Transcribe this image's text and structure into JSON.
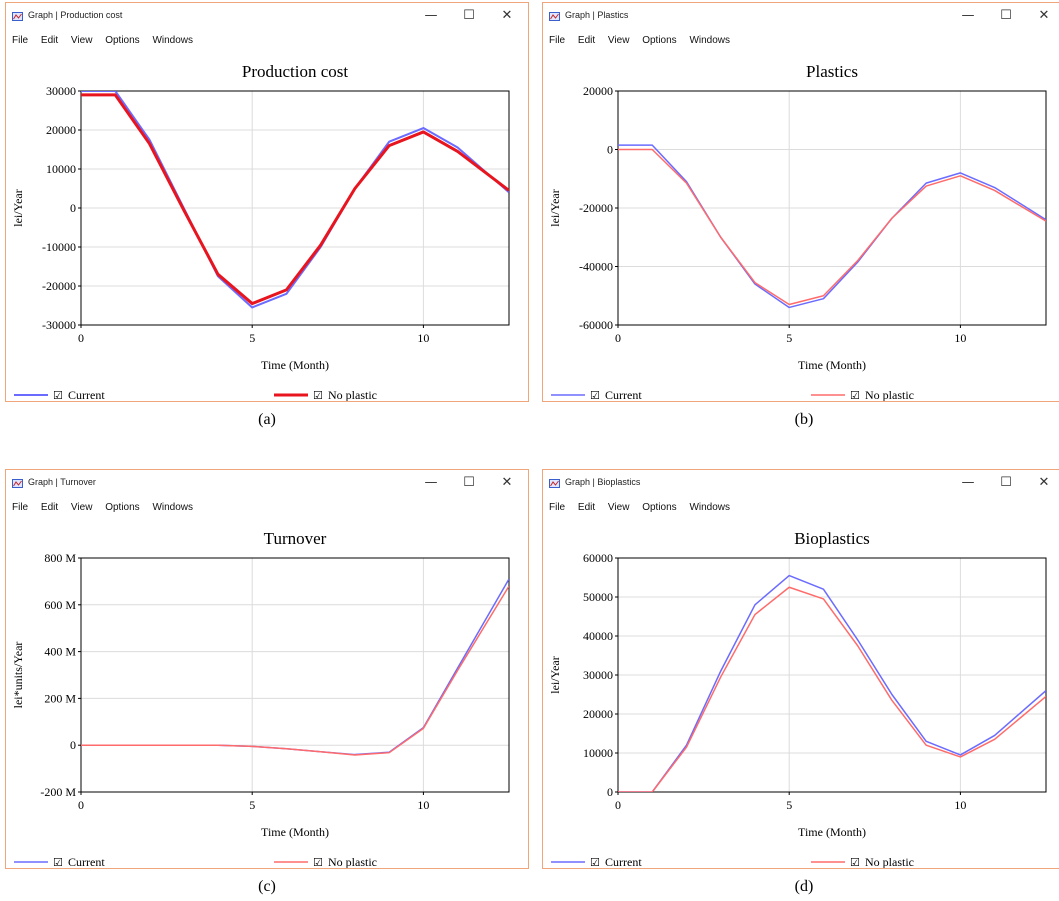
{
  "windows": [
    {
      "window_title": "Graph | Production cost",
      "menu": [
        "File",
        "Edit",
        "View",
        "Options",
        "Windows"
      ],
      "caption": "(a)",
      "chart_data": {
        "type": "line",
        "title": "Production cost",
        "xlabel": "Time (Month)",
        "ylabel": "lei/Year",
        "xlim": [
          0,
          12.5
        ],
        "ylim": [
          -30000,
          30000
        ],
        "xticks": [
          0,
          5,
          10
        ],
        "yticks": [
          -30000,
          -20000,
          -10000,
          0,
          10000,
          20000,
          30000
        ],
        "yticklabels": [
          "-30000",
          "-20000",
          "-10000",
          "0",
          "10000",
          "20000",
          "30000"
        ],
        "grid": true,
        "legend_placement": "bottom",
        "x": [
          0,
          1,
          2,
          3,
          4,
          5,
          6,
          7,
          8,
          9,
          10,
          11,
          12.5
        ],
        "series": [
          {
            "name": "Current",
            "color": "#6b6bff",
            "width": 2,
            "checkbox": "☑",
            "values": [
              30000,
              30000,
              17500,
              0,
              -17500,
              -25500,
              -22000,
              -10000,
              5000,
              17000,
              20500,
              15500,
              4000
            ]
          },
          {
            "name": "No plastic",
            "color": "#e8141e",
            "width": 3,
            "checkbox": "☑",
            "values": [
              29000,
              29000,
              16500,
              -500,
              -17000,
              -24500,
              -21000,
              -9500,
              5000,
              16000,
              19500,
              14500,
              4500
            ]
          }
        ]
      }
    },
    {
      "window_title": "Graph | Plastics",
      "menu": [
        "File",
        "Edit",
        "View",
        "Options",
        "Windows"
      ],
      "caption": "(b)",
      "chart_data": {
        "type": "line",
        "title": "Plastics",
        "xlabel": "Time (Month)",
        "ylabel": "lei/Year",
        "xlim": [
          0,
          12.5
        ],
        "ylim": [
          -60000,
          20000
        ],
        "xticks": [
          0,
          5,
          10
        ],
        "yticks": [
          -60000,
          -40000,
          -20000,
          0,
          20000
        ],
        "yticklabels": [
          "-60000",
          "-40000",
          "-20000",
          "0",
          "20000"
        ],
        "grid": true,
        "legend_placement": "bottom",
        "x": [
          0,
          1,
          2,
          3,
          4,
          5,
          6,
          7,
          8,
          9,
          10,
          11,
          12.5
        ],
        "series": [
          {
            "name": "Current",
            "color": "#6b6bff",
            "width": 1.5,
            "checkbox": "☑",
            "values": [
              1500,
              1500,
              -11000,
              -30000,
              -46000,
              -54000,
              -51000,
              -38500,
              -23500,
              -11500,
              -8000,
              -13000,
              -24000
            ]
          },
          {
            "name": "No plastic",
            "color": "#ff6b6b",
            "width": 1.5,
            "checkbox": "☑",
            "values": [
              0,
              0,
              -11500,
              -30000,
              -45500,
              -53000,
              -50000,
              -38000,
              -23500,
              -12500,
              -9000,
              -14000,
              -24500
            ]
          }
        ]
      }
    },
    {
      "window_title": "Graph | Turnover",
      "menu": [
        "File",
        "Edit",
        "View",
        "Options",
        "Windows"
      ],
      "caption": "(c)",
      "chart_data": {
        "type": "line",
        "title": "Turnover",
        "xlabel": "Time (Month)",
        "ylabel": "lei*units/Year",
        "xlim": [
          0,
          12.5
        ],
        "ylim": [
          -200,
          800
        ],
        "xticks": [
          0,
          5,
          10
        ],
        "yticks": [
          -200,
          0,
          200,
          400,
          600,
          800
        ],
        "yticklabels": [
          "-200 M",
          "0",
          "200 M",
          "400 M",
          "600 M",
          "800 M"
        ],
        "grid": true,
        "legend_placement": "bottom",
        "x": [
          0,
          1,
          2,
          3,
          4,
          5,
          6,
          7,
          8,
          9,
          10,
          11,
          12.5
        ],
        "series": [
          {
            "name": "Current",
            "color": "#6b6bff",
            "width": 1.5,
            "checkbox": "☑",
            "values": [
              0,
              0,
              0,
              0,
              0,
              -5,
              -15,
              -28,
              -40,
              -30,
              75,
              330,
              710
            ]
          },
          {
            "name": "No plastic",
            "color": "#ff6b6b",
            "width": 1.5,
            "checkbox": "☑",
            "values": [
              0,
              0,
              0,
              0,
              0,
              -5,
              -15,
              -28,
              -42,
              -32,
              72,
              320,
              680
            ]
          }
        ]
      }
    },
    {
      "window_title": "Graph | Bioplastics",
      "menu": [
        "File",
        "Edit",
        "View",
        "Options",
        "Windows"
      ],
      "caption": "(d)",
      "chart_data": {
        "type": "line",
        "title": "Bioplastics",
        "xlabel": "Time (Month)",
        "ylabel": "lei/Year",
        "xlim": [
          0,
          12.5
        ],
        "ylim": [
          0,
          60000
        ],
        "xticks": [
          0,
          5,
          10
        ],
        "yticks": [
          0,
          10000,
          20000,
          30000,
          40000,
          50000,
          60000
        ],
        "yticklabels": [
          "0",
          "10000",
          "20000",
          "30000",
          "40000",
          "50000",
          "60000"
        ],
        "grid": true,
        "legend_placement": "bottom",
        "x": [
          0,
          1,
          2,
          3,
          4,
          5,
          6,
          7,
          8,
          9,
          10,
          11,
          12.5
        ],
        "series": [
          {
            "name": "Current",
            "color": "#6b6bff",
            "width": 1.5,
            "checkbox": "☑",
            "values": [
              0,
              0,
              12000,
              31000,
              48000,
              55500,
              52000,
              39000,
              25000,
              13000,
              9500,
              14500,
              26000
            ]
          },
          {
            "name": "No plastic",
            "color": "#ff6b6b",
            "width": 1.5,
            "checkbox": "☑",
            "values": [
              0,
              0,
              11500,
              29500,
              45500,
              52500,
              49500,
              37500,
              23500,
              12000,
              9000,
              13500,
              24500
            ]
          }
        ]
      }
    }
  ]
}
